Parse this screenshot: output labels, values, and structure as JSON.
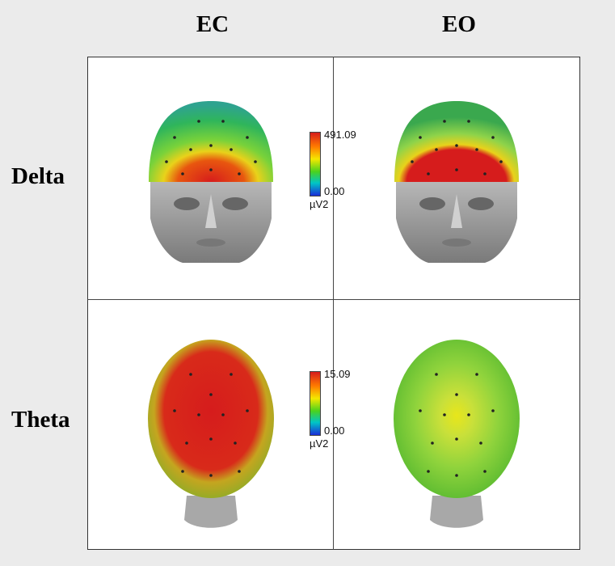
{
  "columns": [
    "EC",
    "EO"
  ],
  "rows": [
    "Delta",
    "Theta"
  ],
  "scales": [
    {
      "band": "Delta",
      "max": "491.09",
      "min": "0.00",
      "unit": "µV2"
    },
    {
      "band": "Theta",
      "max": "15.09",
      "min": "0.00",
      "unit": "µV2"
    }
  ],
  "colors": {
    "background": "#ebebeb",
    "panel": "#ffffff",
    "high": "#d61c1c",
    "mid": "#f4e800",
    "low": "#1a2dd8"
  }
}
